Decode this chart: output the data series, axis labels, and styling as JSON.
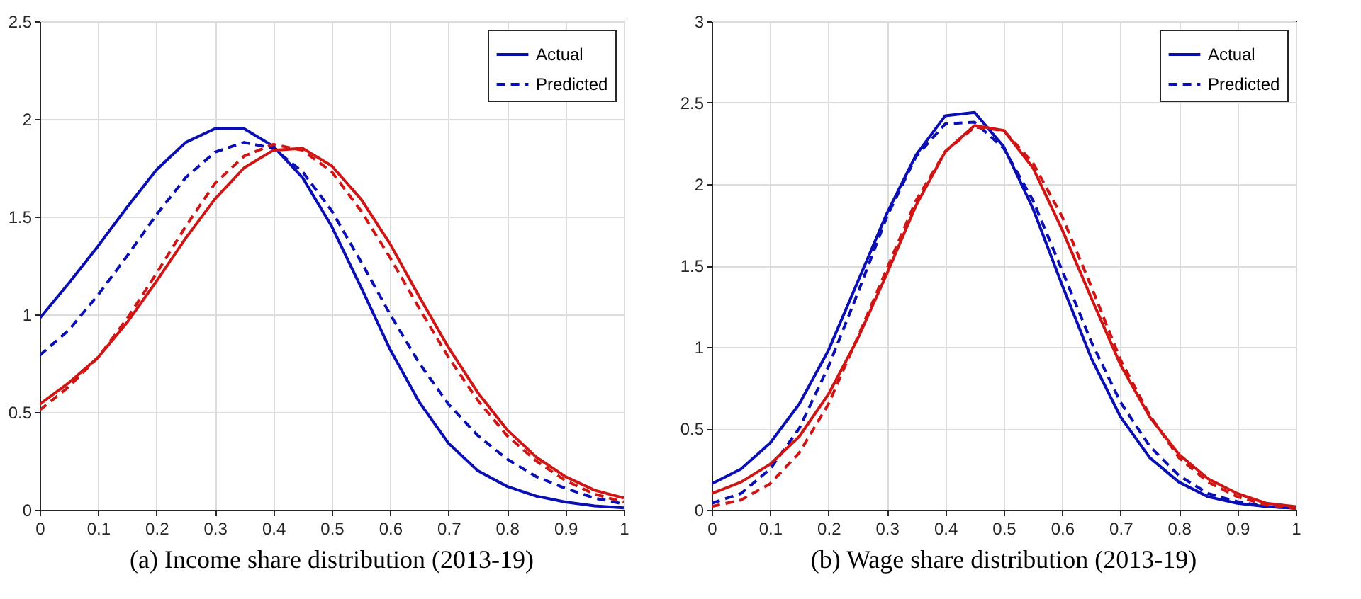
{
  "chart_data": [
    {
      "type": "line",
      "title": "(a) Income share distribution (2013-19)",
      "x": [
        0,
        0.05,
        0.1,
        0.15,
        0.2,
        0.25,
        0.3,
        0.35,
        0.4,
        0.45,
        0.5,
        0.55,
        0.6,
        0.65,
        0.7,
        0.75,
        0.8,
        0.85,
        0.9,
        0.95,
        1
      ],
      "xlim": [
        0,
        1
      ],
      "xticks": [
        0,
        0.1,
        0.2,
        0.3,
        0.4,
        0.5,
        0.6,
        0.7,
        0.8,
        0.9,
        1
      ],
      "ylim": [
        0,
        2.5
      ],
      "yticks": [
        0,
        0.5,
        1,
        1.5,
        2,
        2.5
      ],
      "grid": true,
      "legend": "top right",
      "series": [
        {
          "name": "Actual",
          "color": "#0a0fb4",
          "line_style": "solid",
          "values": [
            0.98,
            1.16,
            1.35,
            1.55,
            1.74,
            1.88,
            1.95,
            1.95,
            1.86,
            1.7,
            1.45,
            1.14,
            0.82,
            0.55,
            0.34,
            0.2,
            0.12,
            0.07,
            0.04,
            0.02,
            0.01
          ]
        },
        {
          "name": "Predicted",
          "color": "#0a0fb4",
          "line_style": "dashed",
          "values": [
            0.79,
            0.92,
            1.1,
            1.3,
            1.51,
            1.7,
            1.83,
            1.88,
            1.85,
            1.73,
            1.53,
            1.27,
            1.0,
            0.75,
            0.54,
            0.38,
            0.26,
            0.17,
            0.11,
            0.06,
            0.03
          ]
        },
        {
          "color": "#d01515",
          "line_style": "solid",
          "values": [
            0.54,
            0.65,
            0.78,
            0.96,
            1.17,
            1.39,
            1.59,
            1.75,
            1.84,
            1.85,
            1.76,
            1.59,
            1.36,
            1.09,
            0.83,
            0.6,
            0.41,
            0.27,
            0.17,
            0.1,
            0.06
          ]
        },
        {
          "color": "#d01515",
          "line_style": "dashed",
          "values": [
            0.51,
            0.63,
            0.78,
            0.98,
            1.21,
            1.45,
            1.67,
            1.81,
            1.87,
            1.84,
            1.73,
            1.53,
            1.29,
            1.03,
            0.78,
            0.56,
            0.38,
            0.25,
            0.15,
            0.08,
            0.04
          ]
        }
      ]
    },
    {
      "type": "line",
      "title": "(b) Wage share distribution (2013-19)",
      "x": [
        0,
        0.05,
        0.1,
        0.15,
        0.2,
        0.25,
        0.3,
        0.35,
        0.4,
        0.45,
        0.5,
        0.55,
        0.6,
        0.65,
        0.7,
        0.75,
        0.8,
        0.85,
        0.9,
        0.95,
        1
      ],
      "xlim": [
        0,
        1
      ],
      "xticks": [
        0,
        0.1,
        0.2,
        0.3,
        0.4,
        0.5,
        0.6,
        0.7,
        0.8,
        0.9,
        1
      ],
      "ylim": [
        0,
        3
      ],
      "yticks": [
        0,
        0.5,
        1,
        1.5,
        2,
        2.5,
        3
      ],
      "grid": true,
      "legend": "top right",
      "series": [
        {
          "name": "Actual",
          "color": "#0a0fb4",
          "line_style": "solid",
          "values": [
            0.16,
            0.25,
            0.41,
            0.65,
            0.98,
            1.4,
            1.82,
            2.18,
            2.42,
            2.44,
            2.23,
            1.85,
            1.38,
            0.93,
            0.57,
            0.32,
            0.17,
            0.08,
            0.04,
            0.02,
            0.01
          ]
        },
        {
          "name": "Predicted",
          "color": "#0a0fb4",
          "line_style": "dashed",
          "values": [
            0.04,
            0.1,
            0.25,
            0.5,
            0.88,
            1.33,
            1.8,
            2.17,
            2.37,
            2.38,
            2.22,
            1.9,
            1.47,
            1.03,
            0.66,
            0.39,
            0.21,
            0.1,
            0.05,
            0.02,
            0.01
          ]
        },
        {
          "color": "#d01515",
          "line_style": "solid",
          "values": [
            0.1,
            0.17,
            0.28,
            0.45,
            0.71,
            1.05,
            1.45,
            1.87,
            2.2,
            2.36,
            2.33,
            2.1,
            1.72,
            1.3,
            0.89,
            0.57,
            0.34,
            0.19,
            0.1,
            0.04,
            0.02
          ]
        },
        {
          "color": "#d01515",
          "line_style": "dashed",
          "values": [
            0.02,
            0.06,
            0.16,
            0.35,
            0.65,
            1.06,
            1.48,
            1.9,
            2.2,
            2.35,
            2.33,
            2.13,
            1.8,
            1.37,
            0.92,
            0.58,
            0.32,
            0.17,
            0.08,
            0.03,
            0.01
          ]
        }
      ]
    }
  ]
}
